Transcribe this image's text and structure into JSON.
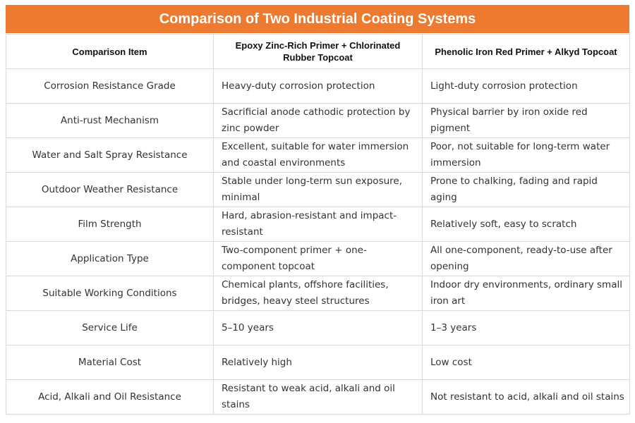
{
  "title": "Comparison of Two Industrial Coating Systems",
  "colors": {
    "title_background": "#EE7A2F",
    "title_text": "#FFFFFF",
    "grid_lines": "#D9D9D9"
  },
  "table": {
    "headers": [
      "Comparison Item",
      "Epoxy Zinc-Rich Primer + Chlorinated Rubber Topcoat",
      "Phenolic Iron Red Primer + Alkyd Topcoat"
    ],
    "rows": [
      [
        "Corrosion Resistance Grade",
        "Heavy-duty corrosion protection",
        "Light-duty corrosion protection"
      ],
      [
        "Anti-rust Mechanism",
        "Sacrificial anode cathodic protection by zinc powder",
        "Physical barrier by iron oxide red pigment"
      ],
      [
        "Water and Salt Spray Resistance",
        "Excellent, suitable for water immersion and coastal environments",
        "Poor, not suitable for long-term water immersion"
      ],
      [
        "Outdoor Weather Resistance",
        "Stable under long-term sun exposure, minimal",
        "Prone to chalking, fading and rapid aging"
      ],
      [
        "Film Strength",
        "Hard, abrasion-resistant and impact-resistant",
        "Relatively soft, easy to scratch"
      ],
      [
        "Application Type",
        "Two-component primer + one-component topcoat",
        "All one-component, ready-to-use after opening"
      ],
      [
        "Suitable Working Conditions",
        "Chemical plants, offshore facilities, bridges, heavy steel structures",
        "Indoor dry environments, ordinary small iron art"
      ],
      [
        "Service Life",
        "5–10 years",
        "1–3 years"
      ],
      [
        "Material Cost",
        "Relatively high",
        "Low cost"
      ],
      [
        "Acid, Alkali and Oil Resistance",
        "Resistant to weak acid, alkali and oil stains",
        "Not resistant to acid, alkali and oil stains"
      ]
    ]
  }
}
